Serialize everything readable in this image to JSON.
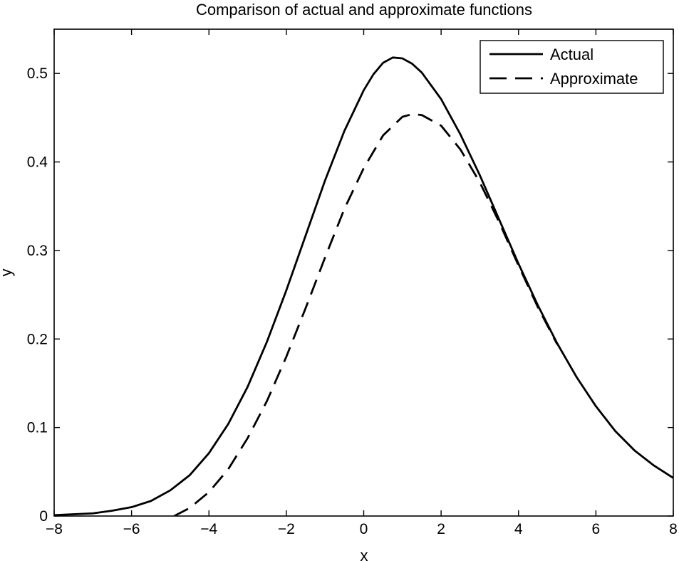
{
  "chart_data": {
    "type": "line",
    "title": "Comparison of actual and approximate functions",
    "xlabel": "x",
    "ylabel": "y",
    "xlim": [
      -8,
      8
    ],
    "ylim": [
      0,
      0.55
    ],
    "grid": false,
    "legend_position": "top-right",
    "xticks": [
      -8,
      -6,
      -4,
      -2,
      0,
      2,
      4,
      6,
      8
    ],
    "xtick_labels": [
      "−8",
      "−6",
      "−4",
      "−2",
      "0",
      "2",
      "4",
      "6",
      "8"
    ],
    "yticks": [
      0,
      0.1,
      0.2,
      0.3,
      0.4,
      0.5
    ],
    "ytick_labels": [
      "0",
      "0.1",
      "0.2",
      "0.3",
      "0.4",
      "0.5"
    ],
    "series": [
      {
        "name": "Actual",
        "style": "solid",
        "color": "#000000",
        "points": [
          [
            -8,
            0.001
          ],
          [
            -7.5,
            0.002
          ],
          [
            -7,
            0.003
          ],
          [
            -6.5,
            0.006
          ],
          [
            -6,
            0.01
          ],
          [
            -5.5,
            0.017
          ],
          [
            -5,
            0.029
          ],
          [
            -4.5,
            0.046
          ],
          [
            -4,
            0.071
          ],
          [
            -3.5,
            0.104
          ],
          [
            -3,
            0.146
          ],
          [
            -2.5,
            0.197
          ],
          [
            -2,
            0.255
          ],
          [
            -1.5,
            0.317
          ],
          [
            -1,
            0.379
          ],
          [
            -0.5,
            0.435
          ],
          [
            0,
            0.481
          ],
          [
            0.25,
            0.499
          ],
          [
            0.5,
            0.512
          ],
          [
            0.75,
            0.518
          ],
          [
            1,
            0.517
          ],
          [
            1.25,
            0.511
          ],
          [
            1.5,
            0.501
          ],
          [
            2,
            0.471
          ],
          [
            2.5,
            0.431
          ],
          [
            3,
            0.385
          ],
          [
            3.5,
            0.335
          ],
          [
            4,
            0.285
          ],
          [
            4.5,
            0.238
          ],
          [
            5,
            0.195
          ],
          [
            5.5,
            0.157
          ],
          [
            6,
            0.124
          ],
          [
            6.5,
            0.096
          ],
          [
            7,
            0.074
          ],
          [
            7.5,
            0.057
          ],
          [
            8,
            0.043
          ]
        ]
      },
      {
        "name": "Approximate",
        "style": "dashed",
        "color": "#000000",
        "points": [
          [
            -4.9,
            0.0
          ],
          [
            -4.5,
            0.009
          ],
          [
            -4,
            0.027
          ],
          [
            -3.5,
            0.053
          ],
          [
            -3,
            0.088
          ],
          [
            -2.5,
            0.13
          ],
          [
            -2,
            0.18
          ],
          [
            -1.5,
            0.235
          ],
          [
            -1,
            0.292
          ],
          [
            -0.5,
            0.347
          ],
          [
            0,
            0.393
          ],
          [
            0.5,
            0.43
          ],
          [
            1,
            0.451
          ],
          [
            1.25,
            0.454
          ],
          [
            1.5,
            0.453
          ],
          [
            2,
            0.441
          ],
          [
            2.5,
            0.414
          ],
          [
            3,
            0.377
          ],
          [
            3.5,
            0.332
          ],
          [
            4,
            0.283
          ],
          [
            4.5,
            0.236
          ],
          [
            5,
            0.194
          ]
        ]
      }
    ]
  }
}
